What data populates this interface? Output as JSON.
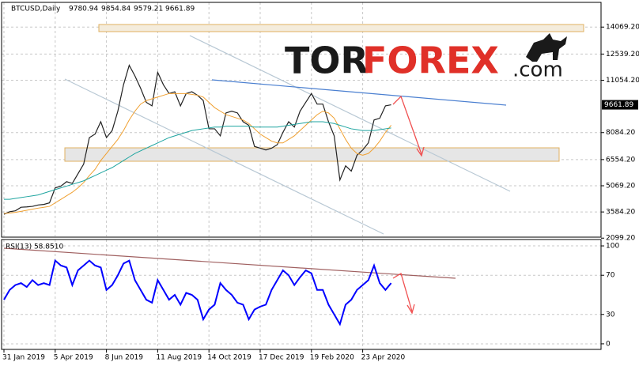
{
  "symbol": "BTCUSD,Daily",
  "ohlc": [
    9780.94,
    9854.84,
    9579.21,
    9661.89
  ],
  "logo": {
    "part1": "TOR",
    "part2": "FOREX",
    "part3": ".com"
  },
  "chart_data": [
    {
      "type": "line",
      "categories": [
        "31 Jan 2019",
        null,
        null,
        null,
        null,
        null,
        null,
        null,
        null,
        "5 Apr 2019",
        null,
        null,
        null,
        null,
        null,
        null,
        null,
        null,
        "8 Jun 2019",
        null,
        null,
        null,
        null,
        null,
        null,
        null,
        null,
        "11 Aug 2019",
        null,
        null,
        null,
        null,
        null,
        null,
        null,
        null,
        "14 Oct 2019",
        null,
        null,
        null,
        null,
        null,
        null,
        null,
        null,
        "17 Dec 2019",
        null,
        null,
        null,
        null,
        null,
        null,
        null,
        null,
        "19 Feb 2020",
        null,
        null,
        null,
        null,
        null,
        null,
        null,
        null,
        "23 Apr 2020",
        null,
        null,
        null,
        null,
        null
      ],
      "series": [
        {
          "name": "BTCUSD,Daily",
          "color": "#222222",
          "values": [
            3450,
            3600,
            3650,
            3850,
            3870,
            3900,
            3980,
            4010,
            4100,
            4950,
            5050,
            5300,
            5200,
            5750,
            6300,
            7800,
            8000,
            8700,
            7800,
            8200,
            9300,
            10800,
            11900,
            11300,
            10600,
            9800,
            9600,
            11500,
            10800,
            10300,
            10400,
            9600,
            10300,
            10400,
            10200,
            9900,
            8300,
            8300,
            7900,
            9200,
            9300,
            9200,
            8700,
            8500,
            7300,
            7200,
            7100,
            7200,
            7400,
            8100,
            8700,
            8400,
            9300,
            9800,
            10300,
            9700,
            9700,
            8700,
            7900,
            5400,
            6200,
            5900,
            6800,
            7100,
            7500,
            8800,
            8900,
            9600,
            9661.89
          ]
        },
        {
          "color": "#f0a030",
          "values": [
            3500,
            3520,
            3560,
            3620,
            3680,
            3740,
            3800,
            3850,
            3900,
            4100,
            4300,
            4500,
            4700,
            4950,
            5250,
            5650,
            6000,
            6500,
            6900,
            7300,
            7700,
            8200,
            8800,
            9300,
            9700,
            9900,
            10000,
            10100,
            10200,
            10300,
            10300,
            10300,
            10300,
            10250,
            10200,
            10100,
            9800,
            9500,
            9300,
            9100,
            9000,
            8900,
            8800,
            8600,
            8300,
            8000,
            7800,
            7600,
            7500,
            7500,
            7700,
            7900,
            8200,
            8500,
            8800,
            9100,
            9300,
            9200,
            8900,
            8300,
            7700,
            7200,
            6900,
            6800,
            6900,
            7200,
            7600,
            8100,
            8500
          ]
        },
        {
          "color": "#1fa5a0",
          "values": [
            4300,
            4300,
            4350,
            4400,
            4450,
            4500,
            4550,
            4650,
            4750,
            4850,
            4950,
            5050,
            5150,
            5250,
            5350,
            5500,
            5650,
            5800,
            5950,
            6100,
            6300,
            6500,
            6700,
            6900,
            7050,
            7200,
            7350,
            7500,
            7650,
            7800,
            7900,
            8000,
            8100,
            8200,
            8250,
            8300,
            8350,
            8400,
            8400,
            8450,
            8450,
            8450,
            8450,
            8450,
            8400,
            8400,
            8400,
            8400,
            8400,
            8450,
            8500,
            8550,
            8600,
            8650,
            8700,
            8700,
            8700,
            8650,
            8600,
            8500,
            8400,
            8300,
            8250,
            8200,
            8200,
            8200,
            8250,
            8300,
            8350
          ]
        }
      ],
      "ylim": [
        2200,
        15470
      ],
      "yticks": [
        {
          "value": 2099.2,
          "label": "2099.20"
        },
        {
          "value": 3584.2,
          "label": "3584.20"
        },
        {
          "value": 5069.2,
          "label": "5069.20"
        },
        {
          "value": 6554.2,
          "label": "6554.20"
        },
        {
          "value": 8084.2,
          "label": "8084.20"
        },
        {
          "value": 11054.2,
          "label": "11054.20"
        },
        {
          "value": 12539.2,
          "label": "12539.20"
        },
        {
          "value": 14069.2,
          "label": "14069.20"
        }
      ],
      "grid": true
    },
    {
      "type": "line",
      "indicator_label": "RSI(13) 58.8510",
      "series": [
        {
          "color": "#0000ff",
          "values": [
            45,
            55,
            60,
            62,
            58,
            65,
            60,
            62,
            60,
            85,
            80,
            78,
            60,
            75,
            80,
            85,
            80,
            78,
            55,
            60,
            70,
            82,
            85,
            65,
            55,
            45,
            42,
            65,
            55,
            45,
            50,
            40,
            52,
            50,
            45,
            25,
            35,
            40,
            62,
            55,
            50,
            42,
            40,
            25,
            35,
            38,
            40,
            55,
            65,
            75,
            70,
            60,
            68,
            75,
            72,
            55,
            55,
            40,
            30,
            20,
            40,
            45,
            55,
            60,
            65,
            80,
            62,
            55,
            62
          ]
        }
      ],
      "ylim": [
        -5.7,
        106.5
      ],
      "yticks": [
        0,
        30,
        70,
        100
      ],
      "grid": true
    }
  ]
}
